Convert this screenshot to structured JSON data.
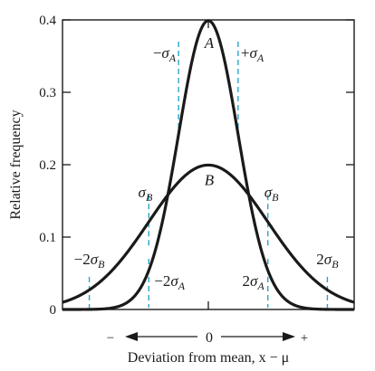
{
  "chart_data": {
    "type": "line",
    "title": "",
    "xlabel": "Deviation from mean, x − μ",
    "ylabel": "Relative frequency",
    "xlim": [
      -4.9,
      4.9
    ],
    "ylim": [
      0,
      0.4
    ],
    "y_ticks": [
      "0",
      "0.1",
      "0.2",
      "0.3",
      "0.4"
    ],
    "x_center_label": "0",
    "x_arrow_minus": "−",
    "x_arrow_plus": "+",
    "grid": false,
    "series": [
      {
        "name": "A",
        "sigma": 1.0,
        "mean": 0,
        "peak": 0.399,
        "color": "#1a1a1a"
      },
      {
        "name": "B",
        "sigma": 2.0,
        "mean": 0,
        "peak": 0.199,
        "color": "#1a1a1a"
      }
    ],
    "markers": [
      {
        "label": "−σA",
        "x": -1,
        "series": "A"
      },
      {
        "label": "+σA",
        "x": 1,
        "series": "A"
      },
      {
        "label": "−2σA",
        "x": -2,
        "series": "A"
      },
      {
        "label": "2σA",
        "x": 2,
        "series": "A"
      },
      {
        "label": "σB",
        "x": -2,
        "series": "B"
      },
      {
        "label": "σB",
        "x": 2,
        "series": "B"
      },
      {
        "label": "−2σB",
        "x": -4,
        "series": "B"
      },
      {
        "label": "2σB",
        "x": 4,
        "series": "B"
      }
    ],
    "marker_color": "#2aa6c8"
  }
}
